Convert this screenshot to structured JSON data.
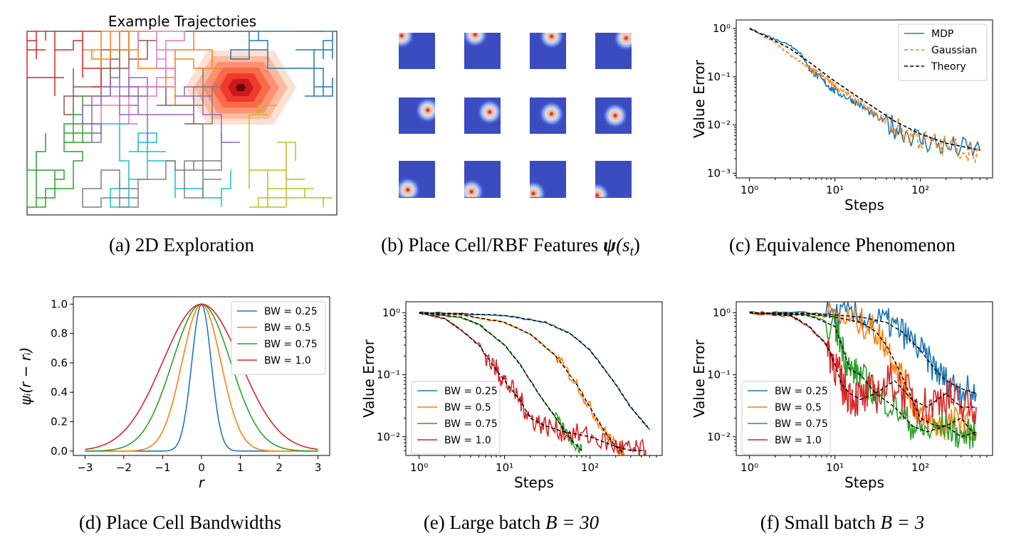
{
  "captions": {
    "a": "(a) 2D Exploration",
    "b_prefix": "(b) Place Cell/RBF Features ",
    "b_psi": "ψ",
    "b_suffix": "(s",
    "b_sub": "t",
    "b_close": ")",
    "c": "(c) Equivalence Phenomenon",
    "d": "(d) Place Cell Bandwidths",
    "e_prefix": "(e) Large batch ",
    "e_math": "B = 30",
    "f_prefix": "(f) Small batch ",
    "f_math": "B = 3"
  },
  "colors": {
    "blue": "#1f77b4",
    "orange": "#ff7f0e",
    "green": "#2ca02c",
    "red": "#d62728",
    "purple": "#9467bd",
    "brown": "#8c564b",
    "pink": "#e377c2",
    "gray": "#7f7f7f",
    "olive": "#bcbd22",
    "cyan": "#17becf",
    "black": "#000000",
    "rbf_bg": "#3b4cc0"
  },
  "chart_data": [
    {
      "id": "a",
      "type": "line",
      "title": "Example Trajectories",
      "description_colors": [
        "brown",
        "orange",
        "red",
        "pink",
        "green",
        "cyan",
        "blue",
        "olive",
        "purple",
        "gray"
      ],
      "heat_peak": [
        0.7,
        0.75
      ]
    },
    {
      "id": "b",
      "type": "heatmap",
      "grid": [
        4,
        4
      ],
      "centers": [
        [
          0.08,
          0.08
        ],
        [
          0.3,
          0.05
        ],
        [
          0.6,
          0.1
        ],
        [
          0.85,
          0.15
        ],
        [
          0.8,
          0.35
        ],
        [
          0.7,
          0.4
        ],
        [
          0.6,
          0.45
        ],
        [
          0.55,
          0.5
        ],
        [
          0.45,
          0.5
        ],
        [
          0.4,
          0.55
        ],
        [
          0.3,
          0.55
        ],
        [
          0.25,
          0.55
        ],
        [
          0.25,
          0.8
        ],
        [
          0.2,
          0.85
        ],
        [
          0.1,
          0.9
        ],
        [
          0.05,
          0.95
        ]
      ]
    },
    {
      "id": "c",
      "type": "line",
      "xlabel": "Steps",
      "ylabel": "Value Error",
      "xscale": "log",
      "yscale": "log",
      "xlim": [
        0.7,
        700
      ],
      "ylim": [
        0.0008,
        1.5
      ],
      "xticks": [
        "10⁰",
        "10¹",
        "10²"
      ],
      "yticks": [
        "10⁰",
        "10⁻¹",
        "10⁻²",
        "10⁻³"
      ],
      "legend": [
        "MDP",
        "Gaussian",
        "Theory"
      ],
      "legend_loc": "upper right",
      "series": [
        {
          "name": "MDP",
          "x": [
            1,
            2,
            3,
            4,
            5,
            6,
            8,
            10,
            15,
            20,
            30,
            50,
            100,
            200,
            500
          ],
          "y": [
            1.0,
            0.6,
            0.45,
            0.3,
            0.15,
            0.11,
            0.07,
            0.05,
            0.035,
            0.025,
            0.015,
            0.009,
            0.005,
            0.0035,
            0.003
          ]
        },
        {
          "name": "Gaussian",
          "x": [
            1,
            2,
            3,
            4,
            5,
            6,
            8,
            10,
            15,
            20,
            30,
            50,
            100,
            200,
            500
          ],
          "y": [
            1.0,
            0.5,
            0.28,
            0.2,
            0.15,
            0.12,
            0.09,
            0.065,
            0.04,
            0.028,
            0.016,
            0.009,
            0.005,
            0.0035,
            0.003
          ]
        },
        {
          "name": "Theory",
          "x": [
            1,
            2,
            3,
            5,
            10,
            20,
            50,
            100,
            200,
            500
          ],
          "y": [
            1.0,
            0.55,
            0.38,
            0.2,
            0.08,
            0.035,
            0.012,
            0.0065,
            0.0042,
            0.003
          ]
        }
      ]
    },
    {
      "id": "d",
      "type": "line",
      "xlabel": "r",
      "ylabel": "ψᵢ(r − rᵢ)",
      "xlim": [
        -3.3,
        3.3
      ],
      "ylim": [
        -0.03,
        1.05
      ],
      "xticks": [
        "−3",
        "−2",
        "−1",
        "0",
        "1",
        "2",
        "3"
      ],
      "yticks": [
        "0.0",
        "0.2",
        "0.4",
        "0.6",
        "0.8",
        "1.0"
      ],
      "legend": [
        "BW = 0.25",
        "BW = 0.5",
        "BW = 0.75",
        "BW = 1.0"
      ],
      "legend_loc": "upper right",
      "bandwidths": [
        0.25,
        0.5,
        0.75,
        1.0
      ]
    },
    {
      "id": "e",
      "type": "line",
      "xlabel": "Steps",
      "ylabel": "Value Error",
      "xscale": "log",
      "yscale": "log",
      "xlim": [
        0.7,
        700
      ],
      "ylim": [
        0.005,
        1.5
      ],
      "xticks": [
        "10⁰",
        "10¹",
        "10²"
      ],
      "yticks": [
        "10⁰",
        "10⁻¹",
        "10⁻²"
      ],
      "legend": [
        "BW = 0.25",
        "BW = 0.5",
        "BW = 0.75",
        "BW = 1.0"
      ],
      "legend_loc": "lower left",
      "series": [
        {
          "name": "BW = 0.25",
          "x": [
            1,
            3,
            10,
            30,
            60,
            100,
            200,
            300,
            500
          ],
          "y": [
            1.0,
            0.97,
            0.9,
            0.7,
            0.45,
            0.25,
            0.07,
            0.03,
            0.013
          ]
        },
        {
          "name": "BW = 0.5",
          "x": [
            1,
            3,
            10,
            20,
            40,
            70,
            100,
            150,
            200,
            250
          ],
          "y": [
            1.0,
            0.93,
            0.7,
            0.45,
            0.2,
            0.07,
            0.03,
            0.012,
            0.007,
            0.0055
          ]
        },
        {
          "name": "BW = 0.75",
          "x": [
            1,
            3,
            5,
            10,
            15,
            25,
            40,
            60,
            80
          ],
          "y": [
            1.0,
            0.85,
            0.65,
            0.3,
            0.15,
            0.05,
            0.02,
            0.009,
            0.006
          ]
        },
        {
          "name": "BW = 1.0",
          "x": [
            1,
            2,
            3,
            5,
            8,
            10,
            15,
            20,
            30,
            50,
            100,
            200,
            300,
            450
          ],
          "y": [
            1.0,
            0.8,
            0.55,
            0.3,
            0.12,
            0.08,
            0.04,
            0.02,
            0.015,
            0.012,
            0.01,
            0.007,
            0.006,
            0.006
          ]
        }
      ]
    },
    {
      "id": "f",
      "type": "line",
      "xlabel": "Steps",
      "ylabel": "Value Error",
      "xscale": "log",
      "yscale": "log",
      "xlim": [
        0.7,
        700
      ],
      "ylim": [
        0.005,
        1.5
      ],
      "xticks": [
        "10⁰",
        "10¹",
        "10²"
      ],
      "yticks": [
        "10⁰",
        "10⁻¹",
        "10⁻²"
      ],
      "legend": [
        "BW = 0.25",
        "BW = 0.5",
        "BW = 0.75",
        "BW = 1.0"
      ],
      "legend_loc": "lower left",
      "series": [
        {
          "name": "BW = 0.25",
          "x": [
            1,
            5,
            10,
            20,
            40,
            60,
            100,
            150,
            200,
            300,
            450
          ],
          "y": [
            1.0,
            0.98,
            0.92,
            0.85,
            0.7,
            0.5,
            0.25,
            0.12,
            0.08,
            0.06,
            0.05
          ]
        },
        {
          "name": "BW = 0.5",
          "x": [
            1,
            5,
            10,
            20,
            30,
            40,
            60,
            80,
            100,
            150,
            200,
            300,
            450
          ],
          "y": [
            1.0,
            0.95,
            0.85,
            0.7,
            0.5,
            0.3,
            0.1,
            0.04,
            0.02,
            0.015,
            0.015,
            0.02,
            0.01
          ]
        },
        {
          "name": "BW = 0.75",
          "x": [
            1,
            5,
            10,
            12,
            15,
            20,
            30,
            50,
            80,
            120,
            200,
            300,
            450
          ],
          "y": [
            1.0,
            0.9,
            0.6,
            0.3,
            0.12,
            0.1,
            0.05,
            0.03,
            0.015,
            0.012,
            0.015,
            0.01,
            0.012
          ]
        },
        {
          "name": "BW = 1.0",
          "x": [
            1,
            3,
            5,
            8,
            10,
            12,
            15,
            20,
            30,
            50,
            80,
            120,
            200,
            300,
            450
          ],
          "y": [
            1.0,
            0.9,
            0.6,
            0.3,
            0.15,
            0.07,
            0.05,
            0.04,
            0.05,
            0.08,
            0.04,
            0.03,
            0.05,
            0.03,
            0.03
          ]
        }
      ]
    }
  ]
}
